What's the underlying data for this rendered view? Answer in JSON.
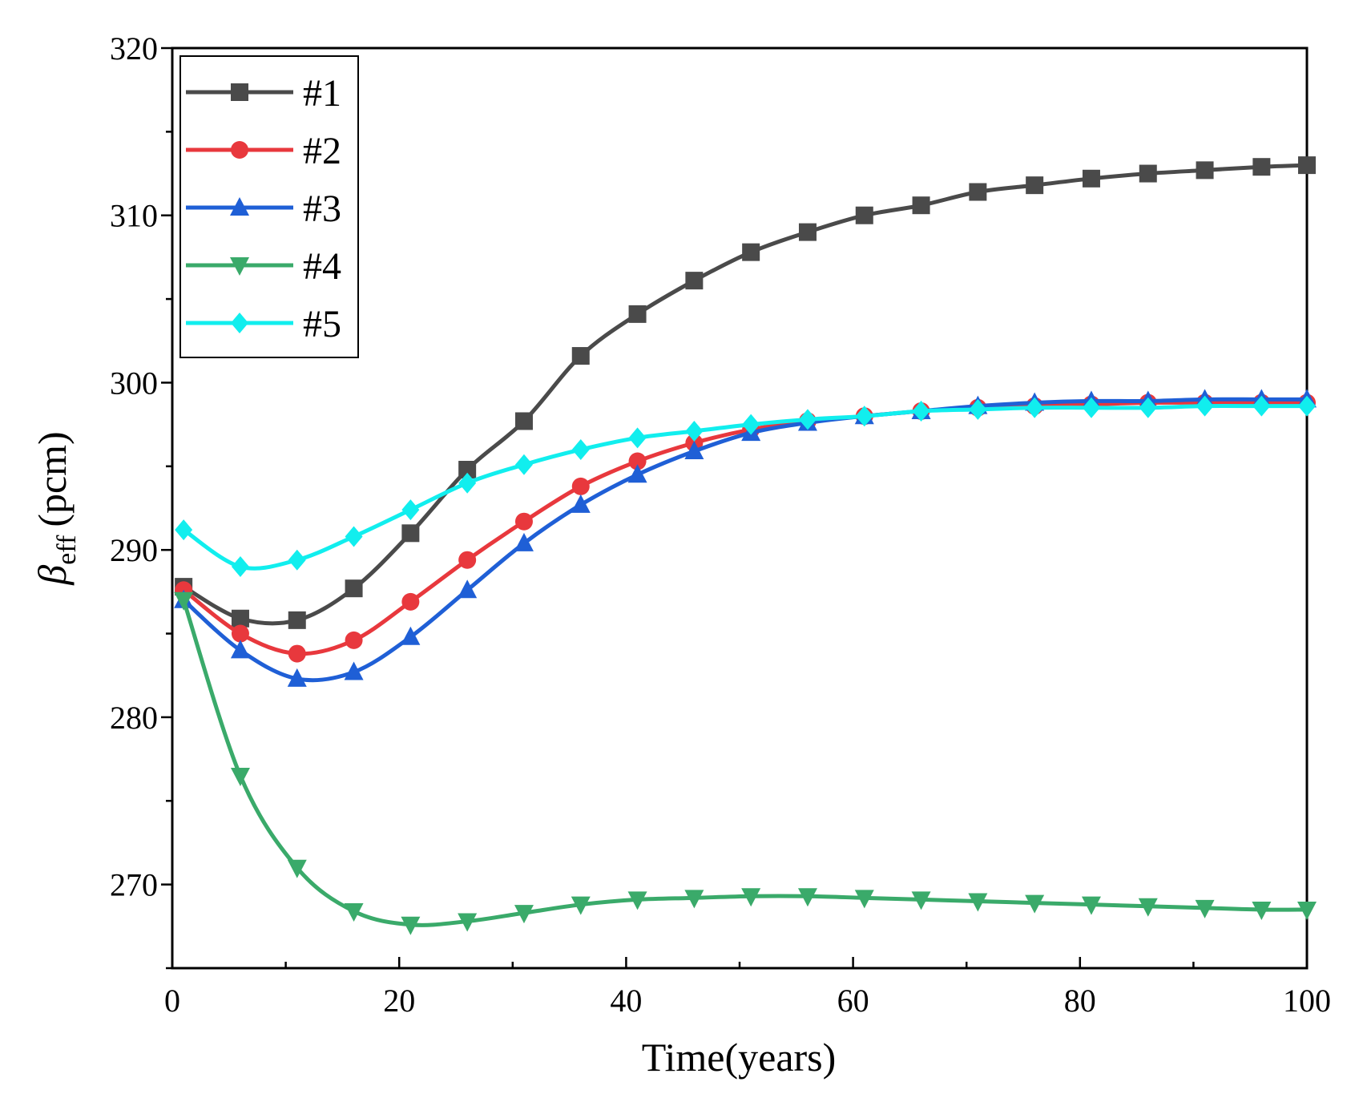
{
  "chart_data": {
    "type": "line",
    "title": "",
    "xlabel": "Time(years)",
    "ylabel": {
      "symbol": "β",
      "subscript": "eff",
      "unit": "(pcm)"
    },
    "xlim": [
      0,
      100
    ],
    "ylim": [
      265,
      320
    ],
    "xticks": [
      0,
      20,
      40,
      60,
      80,
      100
    ],
    "yticks": [
      270,
      280,
      290,
      300,
      310,
      320
    ],
    "grid": false,
    "legend_position": "top-left",
    "x": [
      1,
      6,
      11,
      16,
      21,
      26,
      31,
      36,
      41,
      46,
      51,
      56,
      61,
      66,
      71,
      76,
      81,
      86,
      91,
      96,
      100
    ],
    "series": [
      {
        "name": "#1",
        "color": "#4a4a4a",
        "marker": "square",
        "values": [
          287.8,
          285.9,
          285.8,
          287.7,
          291.0,
          294.8,
          297.7,
          301.6,
          304.1,
          306.1,
          307.8,
          309.0,
          310.0,
          310.6,
          311.4,
          311.8,
          312.2,
          312.5,
          312.7,
          312.9,
          313.0
        ]
      },
      {
        "name": "#2",
        "color": "#e8383d",
        "marker": "circle",
        "values": [
          287.6,
          285.0,
          283.8,
          284.6,
          286.9,
          289.4,
          291.7,
          293.8,
          295.3,
          296.4,
          297.2,
          297.7,
          298.0,
          298.3,
          298.5,
          298.6,
          298.7,
          298.8,
          298.8,
          298.8,
          298.8
        ]
      },
      {
        "name": "#3",
        "color": "#1f5fd6",
        "marker": "triangle-up",
        "values": [
          287.0,
          284.0,
          282.3,
          282.7,
          284.8,
          287.6,
          290.4,
          292.7,
          294.5,
          295.9,
          297.0,
          297.6,
          298.0,
          298.3,
          298.6,
          298.8,
          298.9,
          298.9,
          299.0,
          299.0,
          299.0
        ]
      },
      {
        "name": "#4",
        "color": "#3aaa6a",
        "marker": "triangle-down",
        "values": [
          287.0,
          276.5,
          271.0,
          268.4,
          267.6,
          267.8,
          268.3,
          268.8,
          269.1,
          269.2,
          269.3,
          269.3,
          269.2,
          269.1,
          269.0,
          268.9,
          268.8,
          268.7,
          268.6,
          268.5,
          268.5
        ]
      },
      {
        "name": "#5",
        "color": "#11eeee",
        "marker": "diamond",
        "values": [
          291.2,
          289.0,
          289.4,
          290.8,
          292.4,
          294.0,
          295.1,
          296.0,
          296.7,
          297.1,
          297.5,
          297.8,
          298.0,
          298.3,
          298.4,
          298.5,
          298.5,
          298.5,
          298.6,
          298.6,
          298.6
        ]
      }
    ]
  }
}
